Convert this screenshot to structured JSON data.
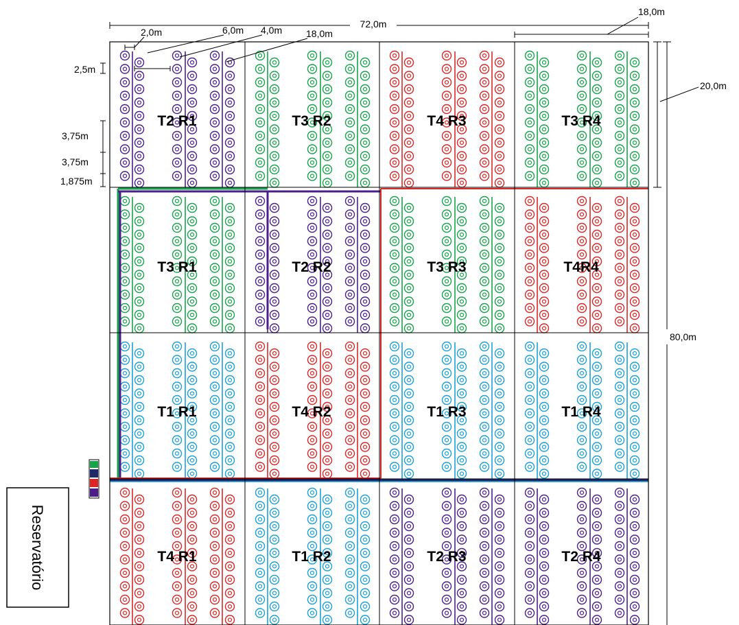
{
  "colors": {
    "T1": "#19a0d8",
    "T2": "#4b1e8c",
    "T3": "#16a34a",
    "T4": "#dc2626",
    "grid": "#000000",
    "main_pipe": "#1f2a6b"
  },
  "plots": [
    [
      "T2 R1",
      "T3 R2",
      "T4 R3",
      "T3 R4"
    ],
    [
      "T3 R1",
      "T2 R2",
      "T3 R3",
      "T4R4"
    ],
    [
      "T1 R1",
      "T4 R2",
      "T1 R3",
      "T1 R4"
    ],
    [
      "T4 R1",
      "T1 R2",
      "T2 R3",
      "T2 R4"
    ]
  ],
  "plot_treatments": [
    [
      "T2",
      "T3",
      "T4",
      "T3"
    ],
    [
      "T3",
      "T2",
      "T3",
      "T4"
    ],
    [
      "T1",
      "T4",
      "T1",
      "T1"
    ],
    [
      "T4",
      "T1",
      "T2",
      "T2"
    ]
  ],
  "dimensions": {
    "total_width": "72,0m",
    "top_right_width": "18,0m",
    "plot_spacing": "2,0m",
    "row_spacing": "6,0m",
    "gap": "4,0m",
    "plot_width": "18,0m",
    "first_offset": "2,5m",
    "spacing_a": "3,75m",
    "spacing_b": "3,75m",
    "spacing_c": "1,875m",
    "plot_height": "20,0m",
    "total_height": "80,0m"
  },
  "reservoir": "Reservatório"
}
